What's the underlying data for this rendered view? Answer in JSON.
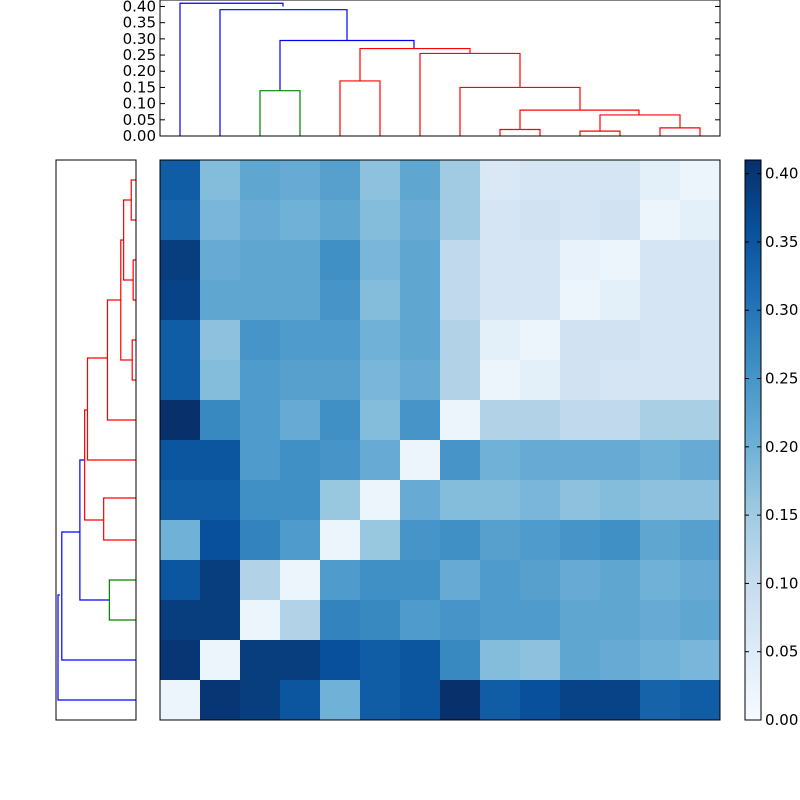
{
  "chart_data": [
    {
      "type": "dendrogram",
      "orientation": "top",
      "yticks": [
        "0.00",
        "0.05",
        "0.10",
        "0.15",
        "0.20",
        "0.25",
        "0.30",
        "0.35",
        "0.40"
      ],
      "ylim": [
        0,
        0.42
      ],
      "colors": {
        "blue": "#0000ff",
        "red": "#ff0000",
        "green": "#008000"
      },
      "links": [
        {
          "x": [
            180,
            180,
            283,
            283
          ],
          "y": [
            0.0,
            0.41,
            0.41,
            0.4
          ],
          "color": "blue"
        },
        {
          "x": [
            220,
            220,
            347,
            347
          ],
          "y": [
            0.0,
            0.39,
            0.39,
            0.295
          ],
          "color": "blue"
        },
        {
          "x": [
            280,
            280,
            414,
            414
          ],
          "y": [
            0.14,
            0.295,
            0.295,
            0.27
          ],
          "color": "blue"
        },
        {
          "x": [
            260,
            260,
            300,
            300
          ],
          "y": [
            0.0,
            0.14,
            0.14,
            0.0
          ],
          "color": "green"
        },
        {
          "x": [
            360,
            360,
            470,
            470
          ],
          "y": [
            0.17,
            0.27,
            0.27,
            0.255
          ],
          "color": "red"
        },
        {
          "x": [
            340,
            340,
            380,
            380
          ],
          "y": [
            0.0,
            0.17,
            0.17,
            0.0
          ],
          "color": "red"
        },
        {
          "x": [
            420,
            420,
            520,
            520
          ],
          "y": [
            0.0,
            0.255,
            0.255,
            0.15
          ],
          "color": "red"
        },
        {
          "x": [
            460,
            460,
            580,
            580
          ],
          "y": [
            0.0,
            0.15,
            0.15,
            0.08
          ],
          "color": "red"
        },
        {
          "x": [
            520,
            520,
            639,
            639
          ],
          "y": [
            0.02,
            0.08,
            0.08,
            0.065
          ],
          "color": "red"
        },
        {
          "x": [
            500,
            500,
            540,
            540
          ],
          "y": [
            0.0,
            0.02,
            0.02,
            0.0
          ],
          "color": "red"
        },
        {
          "x": [
            600,
            600,
            680,
            680
          ],
          "y": [
            0.015,
            0.065,
            0.065,
            0.025
          ],
          "color": "red"
        },
        {
          "x": [
            580,
            580,
            620,
            620
          ],
          "y": [
            0.0,
            0.015,
            0.015,
            0.0
          ],
          "color": "red"
        },
        {
          "x": [
            660,
            660,
            700,
            700
          ],
          "y": [
            0.0,
            0.025,
            0.025,
            0.0
          ],
          "color": "red"
        }
      ]
    },
    {
      "type": "dendrogram",
      "orientation": "left",
      "colors": {
        "blue": "#0000ff",
        "red": "#ff0000",
        "green": "#008000"
      },
      "links": [
        {
          "y": [
            700,
            700,
            595,
            595
          ],
          "x": [
            0.0,
            0.41,
            0.41,
            0.4
          ],
          "color": "blue"
        },
        {
          "y": [
            660,
            660,
            532,
            532
          ],
          "x": [
            0.0,
            0.39,
            0.39,
            0.295
          ],
          "color": "blue"
        },
        {
          "y": [
            600,
            600,
            460,
            460
          ],
          "x": [
            0.14,
            0.295,
            0.295,
            0.27
          ],
          "color": "blue"
        },
        {
          "y": [
            620,
            620,
            580,
            580
          ],
          "x": [
            0.0,
            0.14,
            0.14,
            0.0
          ],
          "color": "green"
        },
        {
          "y": [
            520,
            520,
            410,
            410
          ],
          "x": [
            0.17,
            0.27,
            0.27,
            0.255
          ],
          "color": "red"
        },
        {
          "y": [
            540,
            540,
            498,
            498
          ],
          "x": [
            0.0,
            0.17,
            0.17,
            0.0
          ],
          "color": "red"
        },
        {
          "y": [
            460,
            460,
            358,
            358
          ],
          "x": [
            0.0,
            0.255,
            0.255,
            0.15
          ],
          "color": "red"
        },
        {
          "y": [
            420,
            420,
            300,
            300
          ],
          "x": [
            0.0,
            0.15,
            0.15,
            0.08
          ],
          "color": "red"
        },
        {
          "y": [
            360,
            360,
            240,
            240
          ],
          "x": [
            0.02,
            0.08,
            0.08,
            0.065
          ],
          "color": "red"
        },
        {
          "y": [
            380,
            380,
            340,
            340
          ],
          "x": [
            0.0,
            0.02,
            0.02,
            0.0
          ],
          "color": "red"
        },
        {
          "y": [
            280,
            280,
            200,
            200
          ],
          "x": [
            0.015,
            0.065,
            0.065,
            0.025
          ],
          "color": "red"
        },
        {
          "y": [
            300,
            300,
            260,
            260
          ],
          "x": [
            0.0,
            0.015,
            0.015,
            0.0
          ],
          "color": "red"
        },
        {
          "y": [
            220,
            220,
            180,
            180
          ],
          "x": [
            0.0,
            0.025,
            0.025,
            0.0
          ],
          "color": "red"
        }
      ]
    },
    {
      "type": "heatmap",
      "colormap": "Blues",
      "vmin": 0,
      "vmax": 0.41,
      "rows": 14,
      "cols": 14,
      "values": [
        [
          0.34,
          0.18,
          0.22,
          0.21,
          0.23,
          0.17,
          0.22,
          0.15,
          0.06,
          0.07,
          0.07,
          0.07,
          0.04,
          0.02
        ],
        [
          0.33,
          0.19,
          0.21,
          0.2,
          0.22,
          0.18,
          0.21,
          0.15,
          0.07,
          0.08,
          0.07,
          0.08,
          0.02,
          0.04
        ],
        [
          0.39,
          0.21,
          0.22,
          0.22,
          0.26,
          0.19,
          0.22,
          0.11,
          0.07,
          0.07,
          0.03,
          0.02,
          0.07,
          0.07
        ],
        [
          0.38,
          0.22,
          0.22,
          0.22,
          0.25,
          0.18,
          0.22,
          0.11,
          0.07,
          0.07,
          0.02,
          0.04,
          0.07,
          0.07
        ],
        [
          0.34,
          0.17,
          0.25,
          0.24,
          0.24,
          0.2,
          0.22,
          0.13,
          0.04,
          0.02,
          0.08,
          0.08,
          0.07,
          0.07
        ],
        [
          0.34,
          0.18,
          0.24,
          0.23,
          0.23,
          0.19,
          0.21,
          0.13,
          0.02,
          0.04,
          0.08,
          0.07,
          0.07,
          0.07
        ],
        [
          0.41,
          0.27,
          0.24,
          0.21,
          0.26,
          0.18,
          0.25,
          0.02,
          0.13,
          0.13,
          0.11,
          0.11,
          0.14,
          0.14
        ],
        [
          0.35,
          0.35,
          0.24,
          0.26,
          0.25,
          0.21,
          0.02,
          0.25,
          0.2,
          0.21,
          0.21,
          0.21,
          0.2,
          0.21
        ],
        [
          0.34,
          0.34,
          0.26,
          0.26,
          0.16,
          0.02,
          0.21,
          0.18,
          0.18,
          0.19,
          0.17,
          0.18,
          0.17,
          0.17
        ],
        [
          0.2,
          0.36,
          0.28,
          0.24,
          0.02,
          0.16,
          0.25,
          0.26,
          0.23,
          0.24,
          0.25,
          0.26,
          0.22,
          0.23
        ],
        [
          0.35,
          0.39,
          0.13,
          0.02,
          0.24,
          0.26,
          0.26,
          0.21,
          0.24,
          0.23,
          0.21,
          0.22,
          0.2,
          0.21
        ],
        [
          0.39,
          0.39,
          0.02,
          0.13,
          0.28,
          0.27,
          0.24,
          0.25,
          0.24,
          0.24,
          0.22,
          0.22,
          0.21,
          0.22
        ],
        [
          0.4,
          0.02,
          0.39,
          0.39,
          0.36,
          0.34,
          0.35,
          0.27,
          0.18,
          0.17,
          0.22,
          0.21,
          0.2,
          0.19
        ],
        [
          0.02,
          0.4,
          0.39,
          0.35,
          0.2,
          0.34,
          0.35,
          0.41,
          0.34,
          0.36,
          0.38,
          0.38,
          0.33,
          0.34
        ]
      ]
    },
    {
      "type": "colorbar",
      "colormap": "Blues",
      "range": [
        0,
        0.41
      ],
      "ticks": [
        "0.00",
        "0.05",
        "0.10",
        "0.15",
        "0.20",
        "0.25",
        "0.30",
        "0.35",
        "0.40"
      ],
      "tick_values": [
        0.0,
        0.05,
        0.1,
        0.15,
        0.2,
        0.25,
        0.3,
        0.35,
        0.4
      ]
    }
  ]
}
